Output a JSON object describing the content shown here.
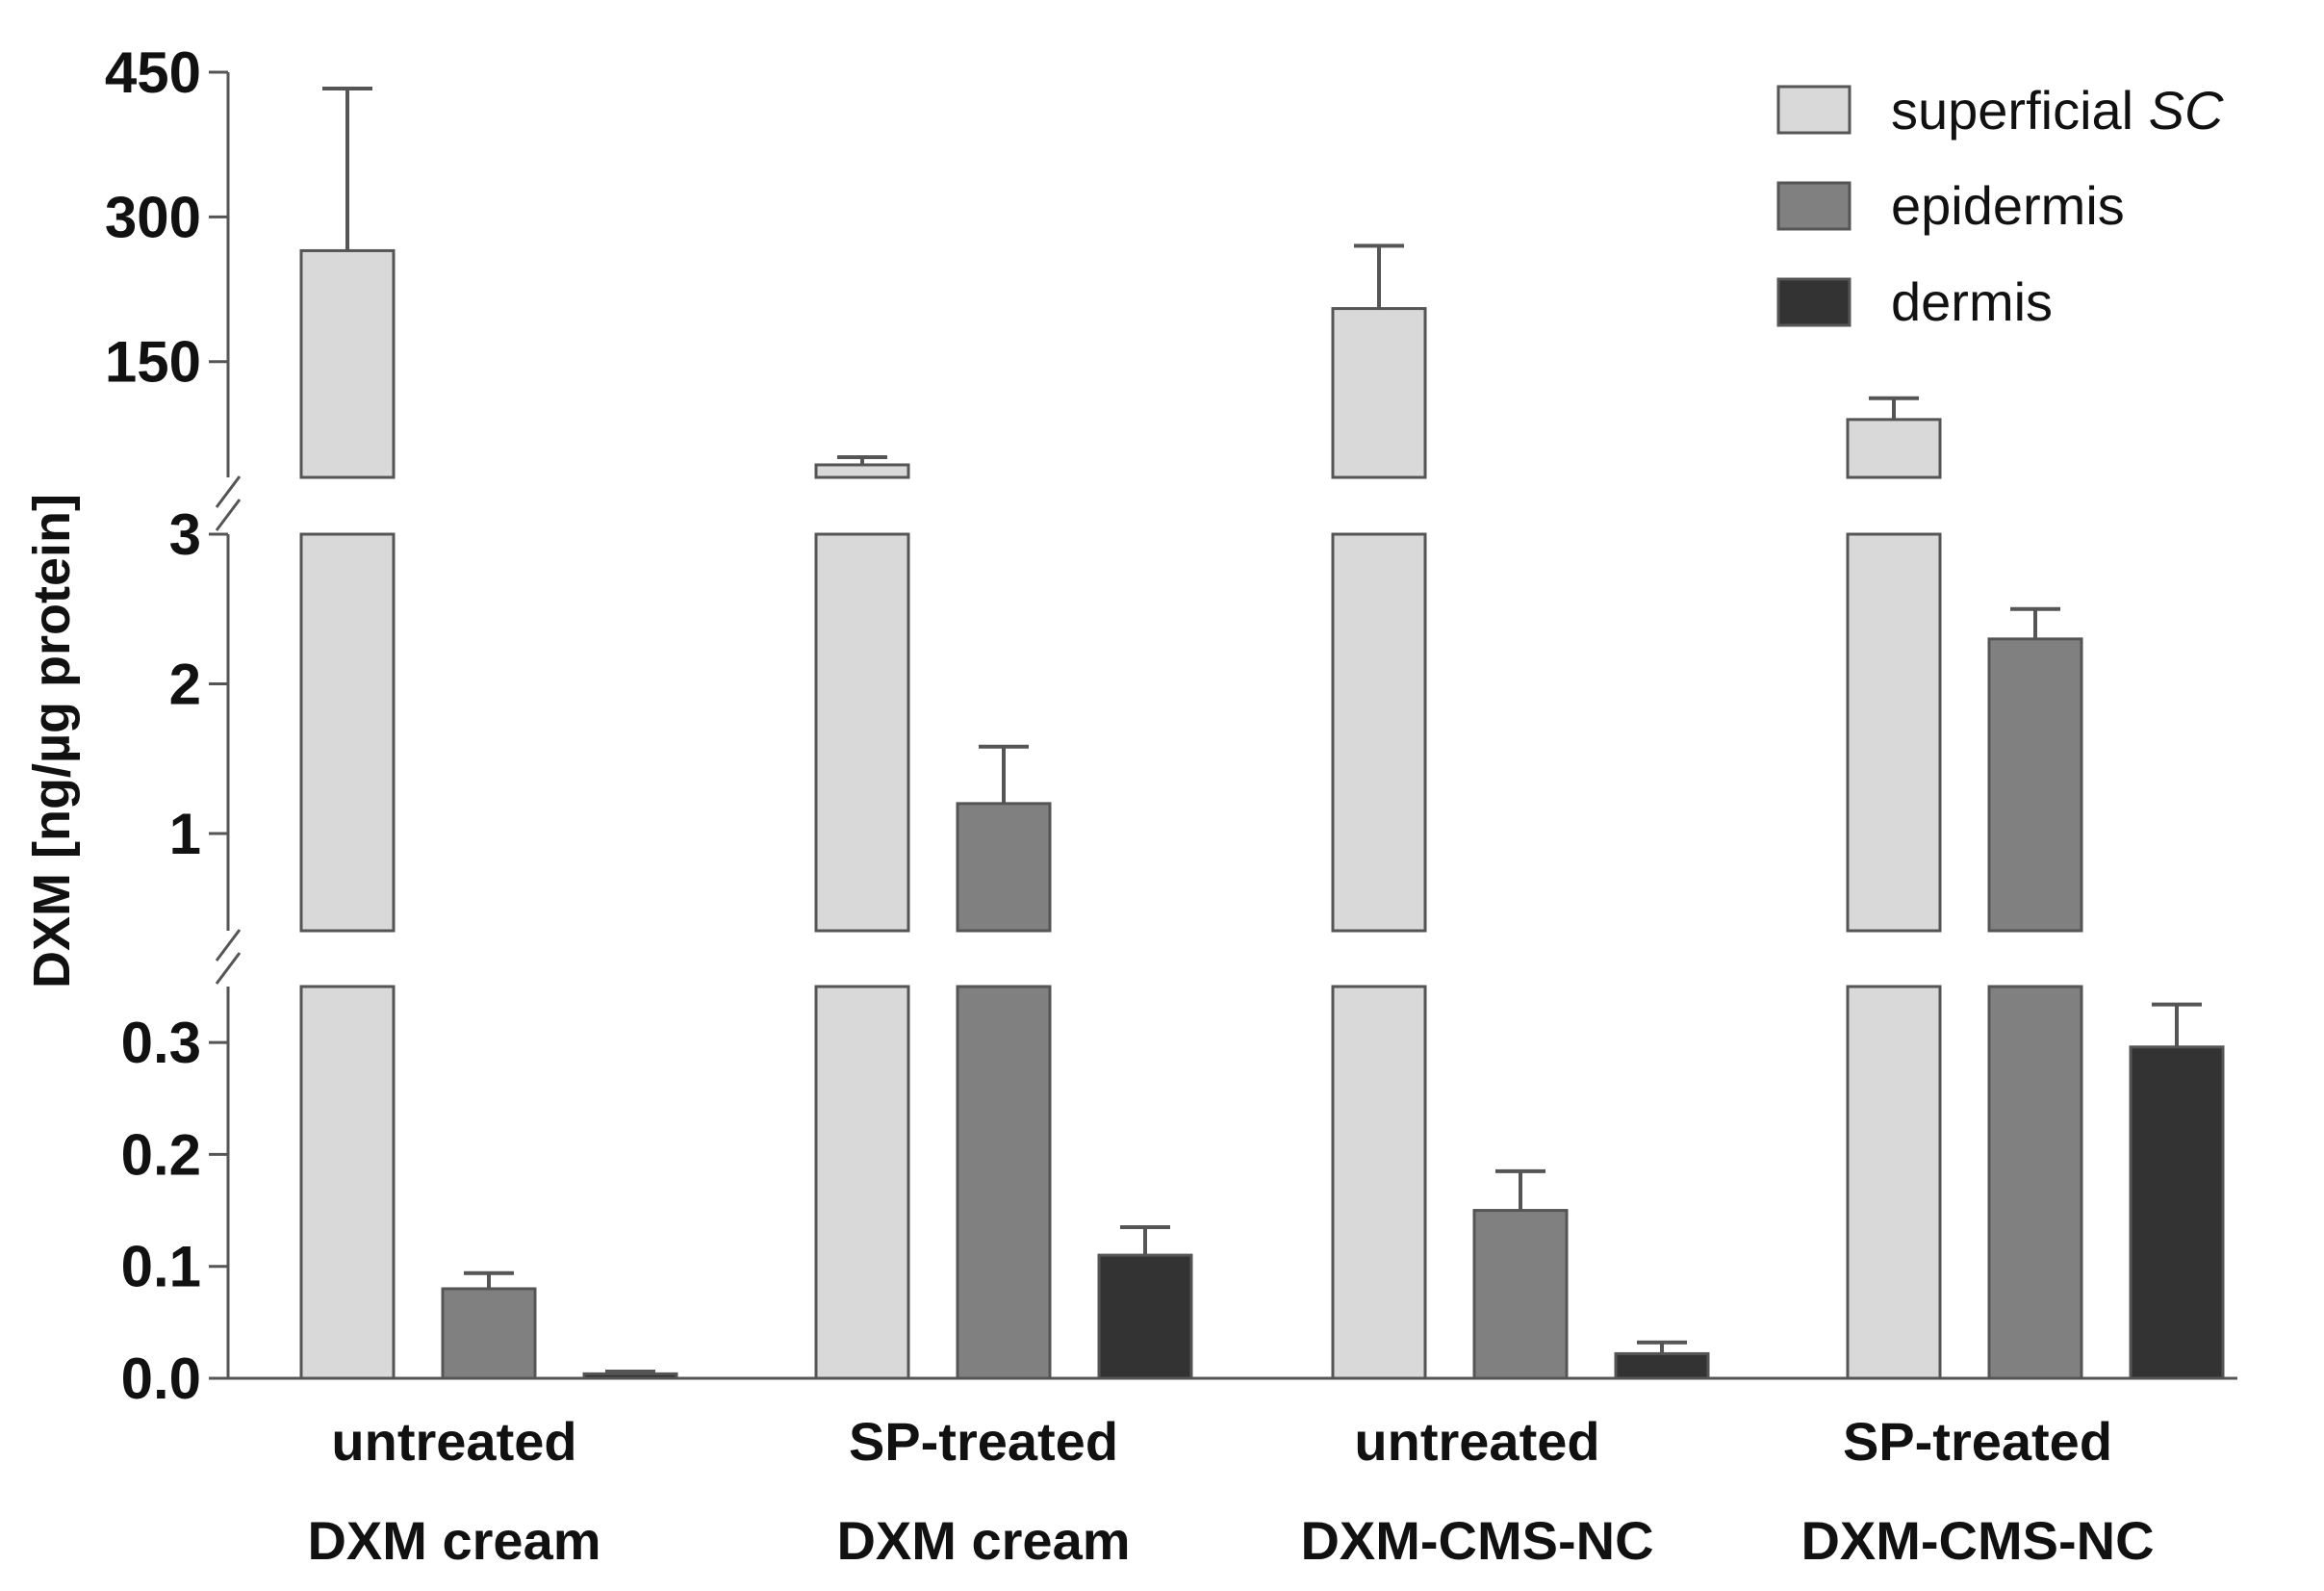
{
  "chart_data": {
    "type": "bar",
    "title": "",
    "xlabel": "",
    "ylabel": "DXM [ng/µg protein]",
    "y_axis_segments": [
      {
        "range": [
          0,
          0.35
        ],
        "ticks": [
          "0.0",
          "0.1",
          "0.2",
          "0.3"
        ]
      },
      {
        "range": [
          0.35,
          3.0
        ],
        "ticks": [
          "1",
          "2",
          "3"
        ]
      },
      {
        "range": [
          30,
          450
        ],
        "ticks": [
          "150",
          "300",
          "450"
        ]
      }
    ],
    "categories": [
      {
        "line1": "untreated",
        "line2": "DXM cream"
      },
      {
        "line1": "SP-treated",
        "line2": "DXM cream"
      },
      {
        "line1": "untreated",
        "line2": "DXM-CMS-NC"
      },
      {
        "line1": "SP-treated",
        "line2": "DXM-CMS-NC"
      }
    ],
    "series": [
      {
        "name": "superficial",
        "name_italic": "SC",
        "color": "#d9d9d9",
        "values": [
          265,
          43,
          205,
          90
        ],
        "errors": [
          168,
          8,
          65,
          22
        ]
      },
      {
        "name": "epidermis",
        "name_italic": "",
        "color": "#808080",
        "values": [
          0.08,
          1.2,
          0.15,
          2.3
        ],
        "errors": [
          0.014,
          0.38,
          0.035,
          0.2
        ]
      },
      {
        "name": "dermis",
        "name_italic": "",
        "color": "#333333",
        "values": [
          0.004,
          0.11,
          0.022,
          0.296
        ],
        "errors": [
          0.002,
          0.025,
          0.01,
          0.038
        ]
      }
    ],
    "legend_position": "top-right"
  }
}
